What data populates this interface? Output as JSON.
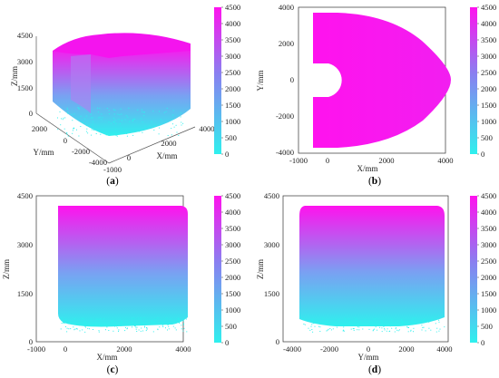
{
  "figure": {
    "panels": [
      {
        "caption_prefix": "(",
        "caption_letter": "a",
        "caption_suffix": ")"
      },
      {
        "caption_prefix": "(",
        "caption_letter": "b",
        "caption_suffix": ")"
      },
      {
        "caption_prefix": "(",
        "caption_letter": "c",
        "caption_suffix": ")"
      },
      {
        "caption_prefix": "(",
        "caption_letter": "d",
        "caption_suffix": ")"
      }
    ]
  },
  "colors": {
    "low": "#2ff0ee",
    "high": "#ff12ee"
  },
  "chart_data": [
    {
      "type": "scatter",
      "subtype": "3d-point-cloud",
      "shape": "hollow cylinder with a removed sector (C-shaped), viewed in 3D",
      "xlabel": "X/mm",
      "ylabel": "Y/mm",
      "zlabel": "Z/mm",
      "x_ticks": [
        "-1000",
        "0",
        "2000",
        "4000"
      ],
      "y_ticks": [
        "-4000",
        "-2000",
        "0",
        "2000"
      ],
      "z_ticks": [
        "0",
        "1500",
        "3000",
        "4500"
      ],
      "colorbar": {
        "ticks": [
          "0",
          "500",
          "1000",
          "1500",
          "2000",
          "2500",
          "3000",
          "3500",
          "4000",
          "4500"
        ],
        "range": [
          0,
          4500
        ],
        "quantity": "Z"
      }
    },
    {
      "type": "scatter",
      "subtype": "top-view (X-Y projection)",
      "shape": "half-disk outer radius ~3800 with inner notch radius ~1000 centered at (0,0), x from about -300",
      "xlabel": "X/mm",
      "ylabel": "Y/mm",
      "x_ticks": [
        "-1000",
        "0",
        "2000",
        "4000"
      ],
      "y_ticks": [
        "-4000",
        "-2000",
        "0",
        "2000",
        "4000"
      ],
      "xlim": [
        -1000,
        4000
      ],
      "ylim": [
        -4000,
        4000
      ],
      "colorbar": {
        "ticks": [
          "0",
          "500",
          "1000",
          "1500",
          "2000",
          "2500",
          "3000",
          "3500",
          "4000",
          "4500"
        ],
        "range": [
          0,
          4500
        ],
        "quantity": "Z"
      }
    },
    {
      "type": "scatter",
      "subtype": "side-view (X-Z projection)",
      "x_extent": [
        -300,
        3800
      ],
      "z_extent": [
        0,
        4150
      ],
      "xlabel": "X/mm",
      "ylabel": "Z/mm",
      "x_ticks": [
        "-1000",
        "0",
        "2000",
        "4000"
      ],
      "y_ticks": [
        "0",
        "1500",
        "3000",
        "4500"
      ],
      "xlim": [
        -1000,
        4000
      ],
      "ylim": [
        0,
        4500
      ],
      "colorbar": {
        "ticks": [
          "0",
          "500",
          "1000",
          "1500",
          "2000",
          "2500",
          "3000",
          "3500",
          "4000",
          "4500"
        ],
        "range": [
          0,
          4500
        ],
        "quantity": "Z"
      }
    },
    {
      "type": "scatter",
      "subtype": "side-view (Y-Z projection)",
      "y_extent": [
        -3800,
        3800
      ],
      "z_extent": [
        0,
        4150
      ],
      "xlabel": "Y/mm",
      "ylabel": "Z/mm",
      "x_ticks": [
        "-4000",
        "-2000",
        "0",
        "2000",
        "4000"
      ],
      "y_ticks": [
        "0",
        "1500",
        "3000",
        "4500"
      ],
      "xlim": [
        -4000,
        4000
      ],
      "ylim": [
        0,
        4500
      ],
      "colorbar": {
        "ticks": [
          "0",
          "500",
          "1000",
          "1500",
          "2000",
          "2500",
          "3000",
          "3500",
          "4000",
          "4500"
        ],
        "range": [
          0,
          4500
        ],
        "quantity": "Z"
      }
    }
  ]
}
